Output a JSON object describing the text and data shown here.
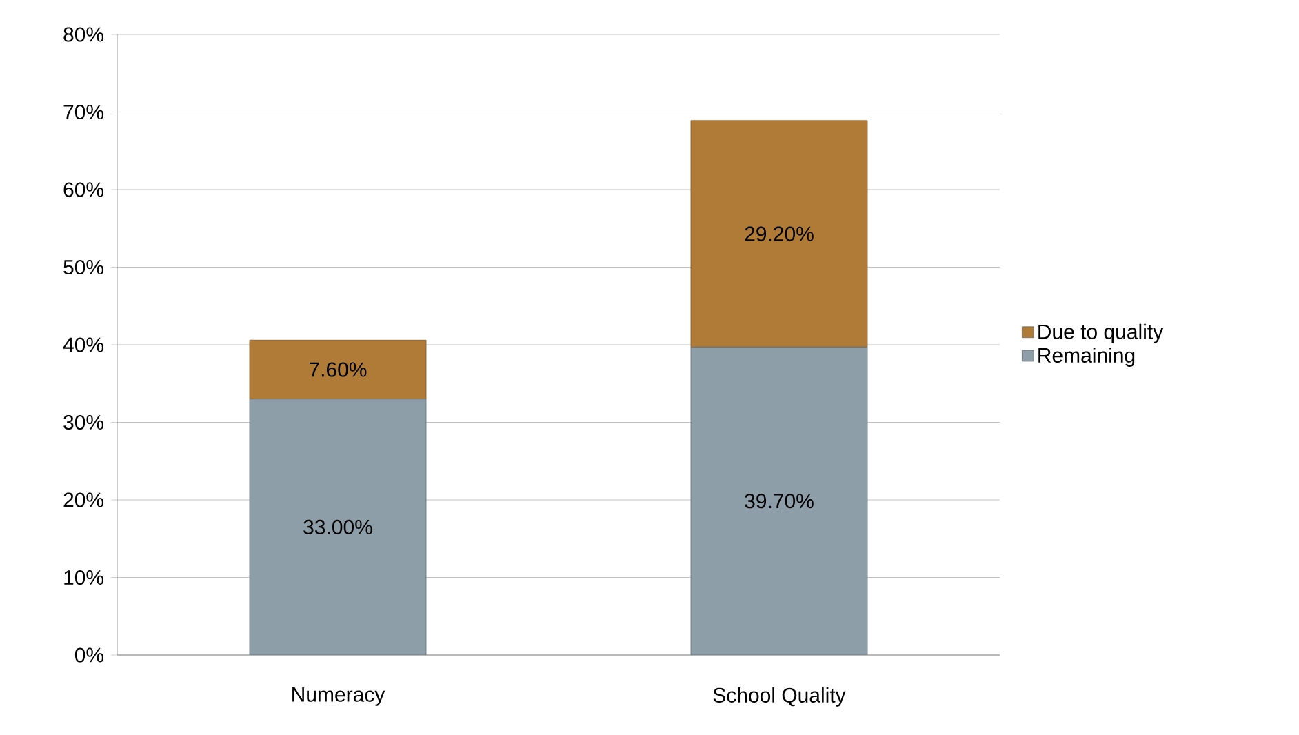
{
  "chart_data": {
    "type": "bar",
    "stacked": true,
    "categories": [
      "Numeracy",
      "School Quality"
    ],
    "series": [
      {
        "name": "Remaining",
        "color": "#8e9ea8",
        "values": [
          33.0,
          39.7
        ],
        "value_labels": [
          "33.00%",
          "39.70%"
        ]
      },
      {
        "name": "Due to quality",
        "color": "#b07b36",
        "values": [
          7.6,
          29.2
        ],
        "value_labels": [
          "7.60%",
          "29.20%"
        ]
      }
    ],
    "ylim": [
      0,
      80
    ],
    "yticks": [
      {
        "value": 0,
        "label": "0%"
      },
      {
        "value": 10,
        "label": "10%"
      },
      {
        "value": 20,
        "label": "20%"
      },
      {
        "value": 30,
        "label": "30%"
      },
      {
        "value": 40,
        "label": "40%"
      },
      {
        "value": 50,
        "label": "50%"
      },
      {
        "value": 60,
        "label": "60%"
      },
      {
        "value": 70,
        "label": "70%"
      },
      {
        "value": 80,
        "label": "80%"
      }
    ],
    "grid": "y",
    "legend": "right"
  }
}
